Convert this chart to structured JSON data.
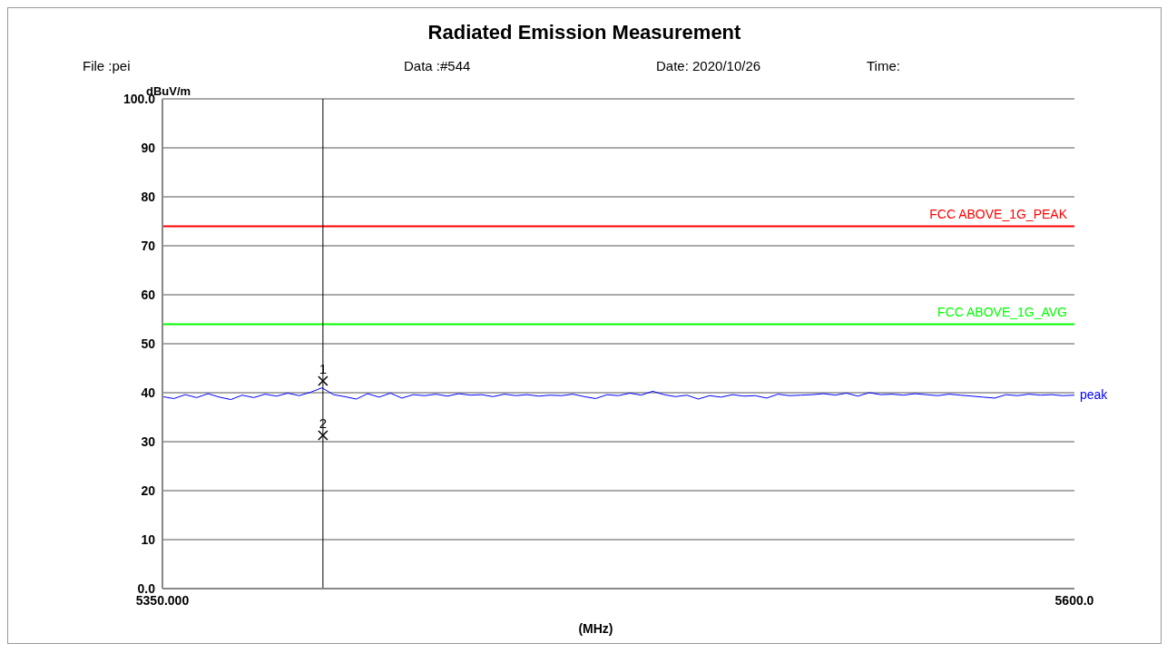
{
  "chart_data": {
    "type": "line",
    "title": "Radiated Emission Measurement",
    "xlabel": "(MHz)",
    "ylabel": "dBuV/m",
    "annotations": [
      "File :pei",
      "Data :#544",
      "Date: 2020/10/26",
      "Time:",
      {
        "text": "1",
        "x": 5394,
        "y": 42.4
      },
      {
        "text": "2",
        "x": 5394,
        "y": 31.3
      }
    ],
    "xlim": [
      5350,
      5600
    ],
    "xticks": [
      {
        "value": 5350,
        "label": "5350.000"
      },
      {
        "value": 5600,
        "label": "5600.0"
      }
    ],
    "ylim": [
      0,
      100
    ],
    "yticks": [
      {
        "value": 0,
        "label": "0.0"
      },
      10,
      20,
      30,
      40,
      50,
      60,
      70,
      80,
      90,
      {
        "value": 100,
        "label": "100.0"
      }
    ],
    "grid": "y",
    "line_style": "solid",
    "marker": "none",
    "ref_lines": [
      {
        "axis": "y",
        "value": 74,
        "label": "FCC ABOVE_1G_PEAK",
        "color": "#ff0000"
      },
      {
        "axis": "y",
        "value": 54,
        "label": "FCC ABOVE_1G_AVG",
        "color": "#00ff00"
      },
      {
        "axis": "x",
        "value": 5394,
        "color": "#000000"
      }
    ],
    "series": [
      {
        "name": "peak",
        "color": "#0000ff",
        "x": [
          5350,
          5353.125,
          5356.25,
          5359.375,
          5362.5,
          5365.625,
          5368.75,
          5371.875,
          5375,
          5378.125,
          5381.25,
          5384.375,
          5387.5,
          5390.625,
          5393.75,
          5396.875,
          5400,
          5403.125,
          5406.25,
          5409.375,
          5412.5,
          5415.625,
          5418.75,
          5421.875,
          5425,
          5428.125,
          5431.25,
          5434.375,
          5437.5,
          5440.625,
          5443.75,
          5446.875,
          5450,
          5453.125,
          5456.25,
          5459.375,
          5462.5,
          5465.625,
          5468.75,
          5471.875,
          5475,
          5478.125,
          5481.25,
          5484.375,
          5487.5,
          5490.625,
          5493.75,
          5496.875,
          5500,
          5503.125,
          5506.25,
          5509.375,
          5512.5,
          5515.625,
          5518.75,
          5521.875,
          5525,
          5528.125,
          5531.25,
          5534.375,
          5537.5,
          5540.625,
          5543.75,
          5546.875,
          5550,
          5553.125,
          5556.25,
          5559.375,
          5562.5,
          5565.625,
          5568.75,
          5571.875,
          5575,
          5578.125,
          5581.25,
          5584.375,
          5587.5,
          5590.625,
          5593.75,
          5596.875,
          5600
        ],
        "values": [
          39.2,
          38.8,
          39.6,
          39.0,
          39.8,
          39.1,
          38.6,
          39.5,
          39.0,
          39.7,
          39.3,
          39.9,
          39.4,
          40.1,
          41.0,
          39.6,
          39.2,
          38.7,
          39.8,
          39.1,
          39.9,
          38.9,
          39.6,
          39.4,
          39.7,
          39.3,
          39.8,
          39.5,
          39.6,
          39.2,
          39.7,
          39.4,
          39.6,
          39.3,
          39.5,
          39.4,
          39.7,
          39.2,
          38.8,
          39.6,
          39.4,
          39.9,
          39.5,
          40.3,
          39.6,
          39.2,
          39.5,
          38.7,
          39.4,
          39.1,
          39.6,
          39.3,
          39.4,
          38.9,
          39.7,
          39.4,
          39.5,
          39.6,
          39.8,
          39.5,
          39.9,
          39.3,
          40.0,
          39.6,
          39.7,
          39.5,
          39.8,
          39.6,
          39.4,
          39.7,
          39.5,
          39.3,
          39.1,
          38.9,
          39.6,
          39.4,
          39.7,
          39.5,
          39.6,
          39.4,
          39.5
        ]
      },
      {
        "type": "scatter",
        "color": "#000000",
        "marker": "cross",
        "x": [
          5394,
          5394
        ],
        "values": [
          42.4,
          31.3
        ]
      }
    ]
  }
}
